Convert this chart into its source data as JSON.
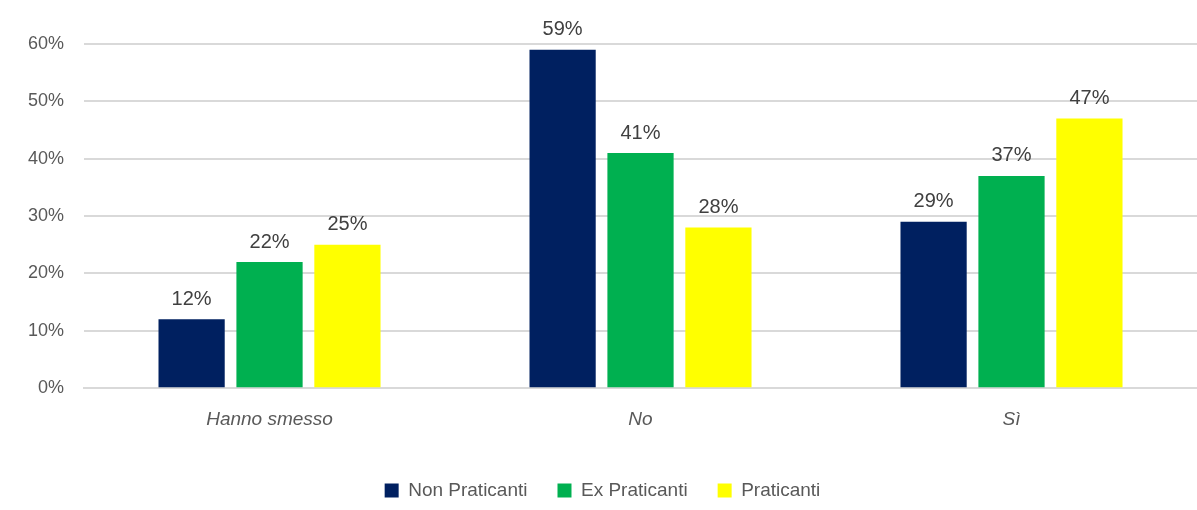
{
  "chart_data": {
    "type": "bar",
    "categories": [
      "Hanno smesso",
      "No",
      "Sì"
    ],
    "series": [
      {
        "name": "Non Praticanti",
        "color": "#002060",
        "values": [
          12,
          59,
          29
        ],
        "value_labels": [
          "12%",
          "59%",
          "29%"
        ]
      },
      {
        "name": "Ex Praticanti",
        "color": "#00b050",
        "values": [
          22,
          41,
          37
        ],
        "value_labels": [
          "22%",
          "41%",
          "37%"
        ]
      },
      {
        "name": "Praticanti",
        "color": "#ffff00",
        "values": [
          25,
          28,
          47
        ],
        "value_labels": [
          "25%",
          "28%",
          "47%"
        ]
      }
    ],
    "ylim": [
      0,
      60
    ],
    "yticks": [
      {
        "value": 0,
        "label": "0%"
      },
      {
        "value": 10,
        "label": "10%"
      },
      {
        "value": 20,
        "label": "20%"
      },
      {
        "value": 30,
        "label": "30%"
      },
      {
        "value": 40,
        "label": "40%"
      },
      {
        "value": 50,
        "label": "50%"
      },
      {
        "value": 60,
        "label": "60%"
      }
    ],
    "grid": "y",
    "legend": "bottom"
  }
}
